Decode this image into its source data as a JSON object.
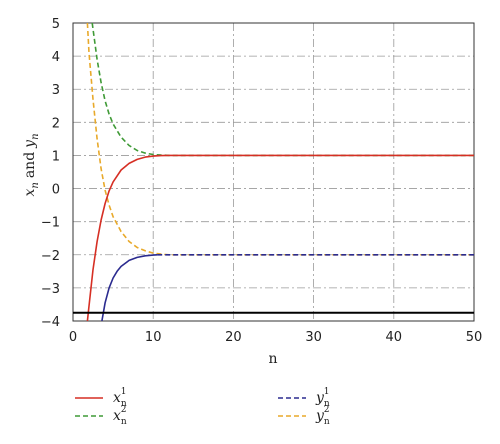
{
  "chart_data": {
    "type": "line",
    "xlabel": "n",
    "ylabel": "x_n and y_n",
    "ylabel_parts": {
      "x": "x",
      "n": "n",
      "and": "and",
      "y": "y"
    },
    "xlim": [
      0,
      50
    ],
    "ylim": [
      -4,
      5
    ],
    "xticks": [
      0,
      10,
      20,
      30,
      40,
      50
    ],
    "yticks": [
      5,
      4,
      3,
      2,
      1,
      0,
      -1,
      -2,
      -3,
      -4
    ],
    "ytick_labels": [
      "5",
      "4",
      "3",
      "2",
      "1",
      "0",
      "−1",
      "−2",
      "−3",
      "−4"
    ],
    "grid": true,
    "legend_placement": "below",
    "series": [
      {
        "name": "x_n^1",
        "label_base": "x",
        "label_sub": "n",
        "label_sup": "1",
        "color": "#d62f24",
        "dash": "solid",
        "x": [
          1.8,
          2,
          2.5,
          3,
          3.5,
          4,
          4.5,
          5,
          6,
          7,
          8,
          9,
          10,
          11,
          12,
          14,
          20,
          30,
          40,
          50
        ],
        "y": [
          -4,
          -3.55,
          -2.45,
          -1.6,
          -0.95,
          -0.45,
          -0.07,
          0.2,
          0.56,
          0.76,
          0.88,
          0.95,
          0.98,
          0.995,
          1,
          1,
          1,
          1,
          1,
          1
        ]
      },
      {
        "name": "x_n^2",
        "label_base": "x",
        "label_sub": "n",
        "label_sup": "2",
        "color": "#3f9a36",
        "dash": "dashed",
        "x": [
          2.4,
          3,
          3.5,
          4,
          4.5,
          5,
          6,
          7,
          8,
          9,
          10,
          11,
          12,
          14,
          20,
          30,
          40,
          50
        ],
        "y": [
          5,
          3.9,
          3.2,
          2.65,
          2.25,
          1.95,
          1.55,
          1.3,
          1.15,
          1.07,
          1.03,
          1.01,
          1,
          1,
          1,
          1,
          1,
          1
        ]
      },
      {
        "name": "y_n^1",
        "label_base": "y",
        "label_sub": "n",
        "label_sup": "1",
        "color": "#2b2b8f",
        "dash": "dashed",
        "x": [
          10.5,
          12,
          14,
          20,
          30,
          40,
          50
        ],
        "y": [
          -2,
          -2,
          -2,
          -2,
          -2,
          -2,
          -2
        ]
      },
      {
        "name": "y_n^2",
        "label_base": "y",
        "label_sub": "n",
        "label_sup": "2",
        "color": "#e8a92a",
        "dash": "dashed",
        "x": [
          1.8,
          2,
          2.5,
          3,
          3.5,
          4,
          4.5,
          5,
          6,
          7,
          8,
          9,
          10,
          11,
          12,
          14,
          20,
          30,
          40,
          50
        ],
        "y": [
          5,
          4.1,
          2.7,
          1.5,
          0.6,
          -0.05,
          -0.5,
          -0.85,
          -1.3,
          -1.6,
          -1.78,
          -1.88,
          -1.95,
          -1.98,
          -2,
          -2,
          -2,
          -2,
          -2,
          -2
        ]
      },
      {
        "name": "y_n^1 curve",
        "color": "#2b2b8f",
        "dash": "solid",
        "x": [
          3.6,
          4,
          4.5,
          5,
          5.5,
          6,
          7,
          8,
          9,
          10,
          10.5
        ],
        "y": [
          -4,
          -3.45,
          -3.0,
          -2.7,
          -2.5,
          -2.35,
          -2.17,
          -2.08,
          -2.03,
          -2.01,
          -2
        ]
      },
      {
        "name": "lower bound",
        "color": "#000000",
        "dash": "solid",
        "x": [
          0,
          50
        ],
        "y": [
          -3.75,
          -3.75
        ]
      }
    ],
    "legend": [
      {
        "series": 0
      },
      {
        "series": 1
      },
      {
        "series": 2
      },
      {
        "series": 3
      }
    ]
  }
}
